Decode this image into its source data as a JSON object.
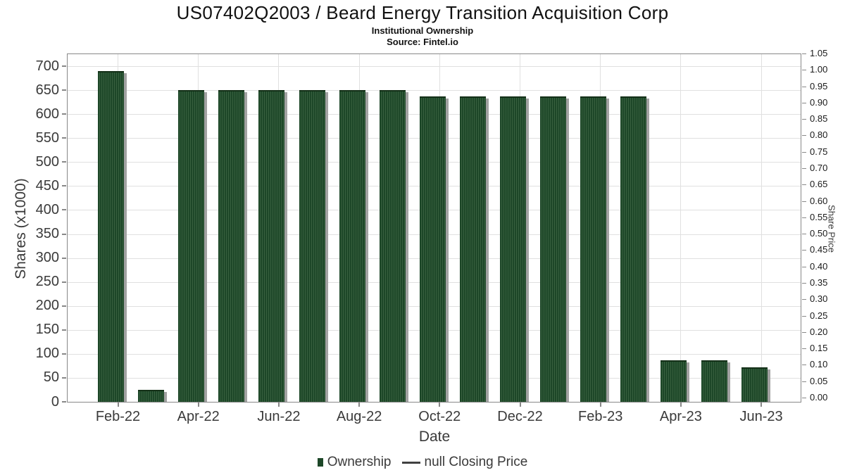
{
  "header": {
    "title": "US07402Q2003 / Beard Energy Transition Acquisition Corp",
    "subtitle": "Institutional Ownership",
    "source": "Source: Fintel.io"
  },
  "chart_data": {
    "type": "bar",
    "title": "US07402Q2003 / Beard Energy Transition Acquisition Corp - Institutional Ownership",
    "xlabel": "Date",
    "ylabel_left": "Shares (x1000)",
    "ylabel_right": "Share Price",
    "categories": [
      "Feb-22",
      "Mar-22",
      "Apr-22",
      "May-22",
      "Jun-22",
      "Jul-22",
      "Aug-22",
      "Sep-22",
      "Oct-22",
      "Nov-22",
      "Dec-22",
      "Jan-23",
      "Feb-23",
      "Mar-23",
      "Apr-23",
      "May-23",
      "Jun-23"
    ],
    "values": [
      690,
      25,
      650,
      650,
      650,
      650,
      650,
      650,
      637,
      637,
      637,
      637,
      637,
      637,
      86,
      86,
      72
    ],
    "xticks": [
      "Feb-22",
      "Apr-22",
      "Jun-22",
      "Aug-22",
      "Oct-22",
      "Dec-22",
      "Feb-23",
      "Apr-23",
      "Jun-23"
    ],
    "yticks_left": [
      0,
      50,
      100,
      150,
      200,
      250,
      300,
      350,
      400,
      450,
      500,
      550,
      600,
      650,
      700
    ],
    "yticks_right": [
      "0.00",
      "0.05",
      "0.10",
      "0.15",
      "0.20",
      "0.25",
      "0.30",
      "0.35",
      "0.40",
      "0.45",
      "0.50",
      "0.55",
      "0.60",
      "0.65",
      "0.70",
      "0.75",
      "0.80",
      "0.85",
      "0.90",
      "0.95",
      "1.00",
      "1.05"
    ],
    "ylim_left": [
      0,
      729
    ],
    "ylim_right": [
      0,
      1.05
    ],
    "grid": true,
    "legend_position": "bottom",
    "legend": [
      {
        "label": "Ownership",
        "marker": "square",
        "color": "#1d4728"
      },
      {
        "label": "null Closing Price",
        "marker": "line",
        "color": "#414141"
      }
    ],
    "bar_color": "#1d4728",
    "bar_stripe_color": "#38603f",
    "bar_shadow_color": "#a2a2a2"
  },
  "colors": {
    "grid": "#e0e0e0",
    "axis_border": "#888888",
    "tick_text": "#3a3a3a",
    "background": "#ffffff"
  }
}
